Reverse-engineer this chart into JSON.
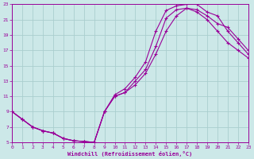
{
  "xlabel": "Windchill (Refroidissement éolien,°C)",
  "xlim": [
    0,
    23
  ],
  "ylim": [
    5,
    23
  ],
  "xticks": [
    0,
    1,
    2,
    3,
    4,
    5,
    6,
    7,
    8,
    9,
    10,
    11,
    12,
    13,
    14,
    15,
    16,
    17,
    18,
    19,
    20,
    21,
    22,
    23
  ],
  "yticks": [
    5,
    7,
    9,
    11,
    13,
    15,
    17,
    19,
    21,
    23
  ],
  "bg_color": "#cce8e8",
  "grid_color": "#aacece",
  "line_color": "#990099",
  "curve_x": [
    0,
    1,
    2,
    3,
    4,
    5,
    6,
    7,
    8,
    9,
    10,
    11,
    12,
    13,
    14,
    15,
    16,
    17,
    18,
    19,
    20,
    21,
    22,
    23
  ],
  "curve1_y": [
    9.0,
    8.0,
    7.0,
    6.5,
    6.2,
    5.5,
    5.2,
    5.1,
    5.0,
    9.0,
    11.2,
    12.0,
    13.5,
    15.5,
    19.5,
    22.2,
    22.8,
    23.0,
    23.0,
    22.0,
    21.5,
    19.5,
    18.0,
    16.5
  ],
  "curve2_y": [
    9.0,
    8.0,
    7.0,
    6.5,
    6.2,
    5.5,
    5.2,
    5.1,
    5.0,
    9.0,
    11.0,
    11.5,
    13.0,
    14.5,
    17.5,
    21.2,
    22.3,
    22.5,
    22.3,
    21.5,
    20.5,
    20.0,
    18.5,
    17.0
  ],
  "curve3_y": [
    9.0,
    8.0,
    7.0,
    6.5,
    6.2,
    5.5,
    5.2,
    5.1,
    5.0,
    9.0,
    11.0,
    11.5,
    12.5,
    14.0,
    16.5,
    19.5,
    21.5,
    22.5,
    22.0,
    21.0,
    19.5,
    18.0,
    17.0,
    16.0
  ]
}
